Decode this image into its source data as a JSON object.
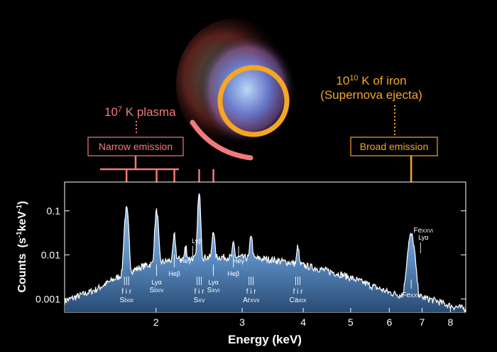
{
  "colors": {
    "background": "#000000",
    "plasma": "#f47a7a",
    "iron": "#f5a623",
    "spectrum_fill": "#7fb3e6",
    "spectrum_line": "#ffffff"
  },
  "annotations": {
    "plasma_label": "10",
    "plasma_exp": "7",
    "plasma_rest": " K plasma",
    "iron_label": "10",
    "iron_exp": "10",
    "iron_rest": " K of iron",
    "iron_sub": "(Supernova ejecta)",
    "narrow_box": "Narrow emission",
    "broad_box": "Broad emission"
  },
  "chart_data": {
    "type": "line",
    "xlabel": "Energy (keV)",
    "ylabel_main": "Counts",
    "ylabel_unit": "(s",
    "ylabel_exp1": "-1",
    "ylabel_mid": "keV",
    "ylabel_exp2": "-1",
    "ylabel_close": ")",
    "xscale": "log",
    "yscale": "log",
    "xlim": [
      1.3,
      8.6
    ],
    "ylim": [
      0.0005,
      0.45
    ],
    "xticks": [
      {
        "v": 2,
        "label": "2"
      },
      {
        "v": 3,
        "label": "3"
      },
      {
        "v": 4,
        "label": "4"
      },
      {
        "v": 5,
        "label": "5"
      },
      {
        "v": 6,
        "label": "6"
      },
      {
        "v": 7,
        "label": "7"
      },
      {
        "v": 8,
        "label": "8"
      }
    ],
    "yticks": [
      {
        "v": 0.1,
        "label": "0.1"
      },
      {
        "v": 0.01,
        "label": "0.01"
      },
      {
        "v": 0.001,
        "label": "0.001"
      }
    ],
    "continuum": [
      [
        1.3,
        0.0009
      ],
      [
        1.5,
        0.0016
      ],
      [
        1.7,
        0.0035
      ],
      [
        1.9,
        0.0058
      ],
      [
        2.2,
        0.008
      ],
      [
        2.6,
        0.009
      ],
      [
        3.0,
        0.0088
      ],
      [
        3.4,
        0.008
      ],
      [
        3.8,
        0.0066
      ],
      [
        4.2,
        0.0052
      ],
      [
        4.8,
        0.0036
      ],
      [
        5.4,
        0.0022
      ],
      [
        6.0,
        0.0014
      ],
      [
        6.4,
        0.0012
      ],
      [
        7.0,
        0.0011
      ],
      [
        7.5,
        0.0009
      ],
      [
        8.0,
        0.0007
      ],
      [
        8.6,
        0.0006
      ]
    ],
    "emission_lines": [
      {
        "e": 1.74,
        "peak": 0.11,
        "w": 0.012
      },
      {
        "e": 2.005,
        "peak": 0.1,
        "w": 0.012
      },
      {
        "e": 2.18,
        "peak": 0.028,
        "w": 0.01
      },
      {
        "e": 2.3,
        "peak": 0.016,
        "w": 0.01
      },
      {
        "e": 2.45,
        "peak": 0.23,
        "w": 0.012
      },
      {
        "e": 2.62,
        "peak": 0.038,
        "w": 0.012
      },
      {
        "e": 2.88,
        "peak": 0.018,
        "w": 0.012
      },
      {
        "e": 3.13,
        "peak": 0.03,
        "w": 0.014
      },
      {
        "e": 3.9,
        "peak": 0.016,
        "w": 0.016
      },
      {
        "e": 6.65,
        "peak": 0.028,
        "w": 0.08
      }
    ],
    "line_ids": [
      {
        "e": 1.74,
        "ion": "Si",
        "stage": "XIII",
        "trans": "f i r",
        "type": "fir"
      },
      {
        "e": 2.005,
        "ion": "Si",
        "stage": "XIV",
        "trans": "Lyα",
        "type": "one"
      },
      {
        "e": 2.18,
        "ion": "",
        "stage": "",
        "trans": "Heβ",
        "type": "one"
      },
      {
        "e": 2.3,
        "ion": "",
        "stage": "",
        "trans": "Heγ",
        "type": "one"
      },
      {
        "e": 2.376,
        "ion": "",
        "stage": "",
        "trans": "Lyβ",
        "type": "one"
      },
      {
        "e": 2.45,
        "ion": "S",
        "stage": "XV",
        "trans": "f i r",
        "type": "fir"
      },
      {
        "e": 2.62,
        "ion": "S",
        "stage": "XVI",
        "trans": "Lyα",
        "type": "one"
      },
      {
        "e": 2.88,
        "ion": "",
        "stage": "",
        "trans": "Heβ",
        "type": "one"
      },
      {
        "e": 2.95,
        "ion": "",
        "stage": "",
        "trans": "Heγ",
        "type": "one"
      },
      {
        "e": 3.13,
        "ion": "Ar",
        "stage": "XVII",
        "trans": "f i r",
        "type": "fir"
      },
      {
        "e": 3.9,
        "ion": "Ca",
        "stage": "XIX",
        "trans": "f i r",
        "type": "fir"
      },
      {
        "e": 6.65,
        "ion": "Fe",
        "stage": "XXV",
        "trans": "",
        "type": "one"
      },
      {
        "e": 6.95,
        "ion": "Fe",
        "stage": "XXVI",
        "trans": "Lyα",
        "type": "one"
      }
    ],
    "narrow_arrow_targets": [
      1.74,
      2.005,
      2.18,
      2.45,
      2.62
    ],
    "broad_arrow_target": 6.65
  }
}
